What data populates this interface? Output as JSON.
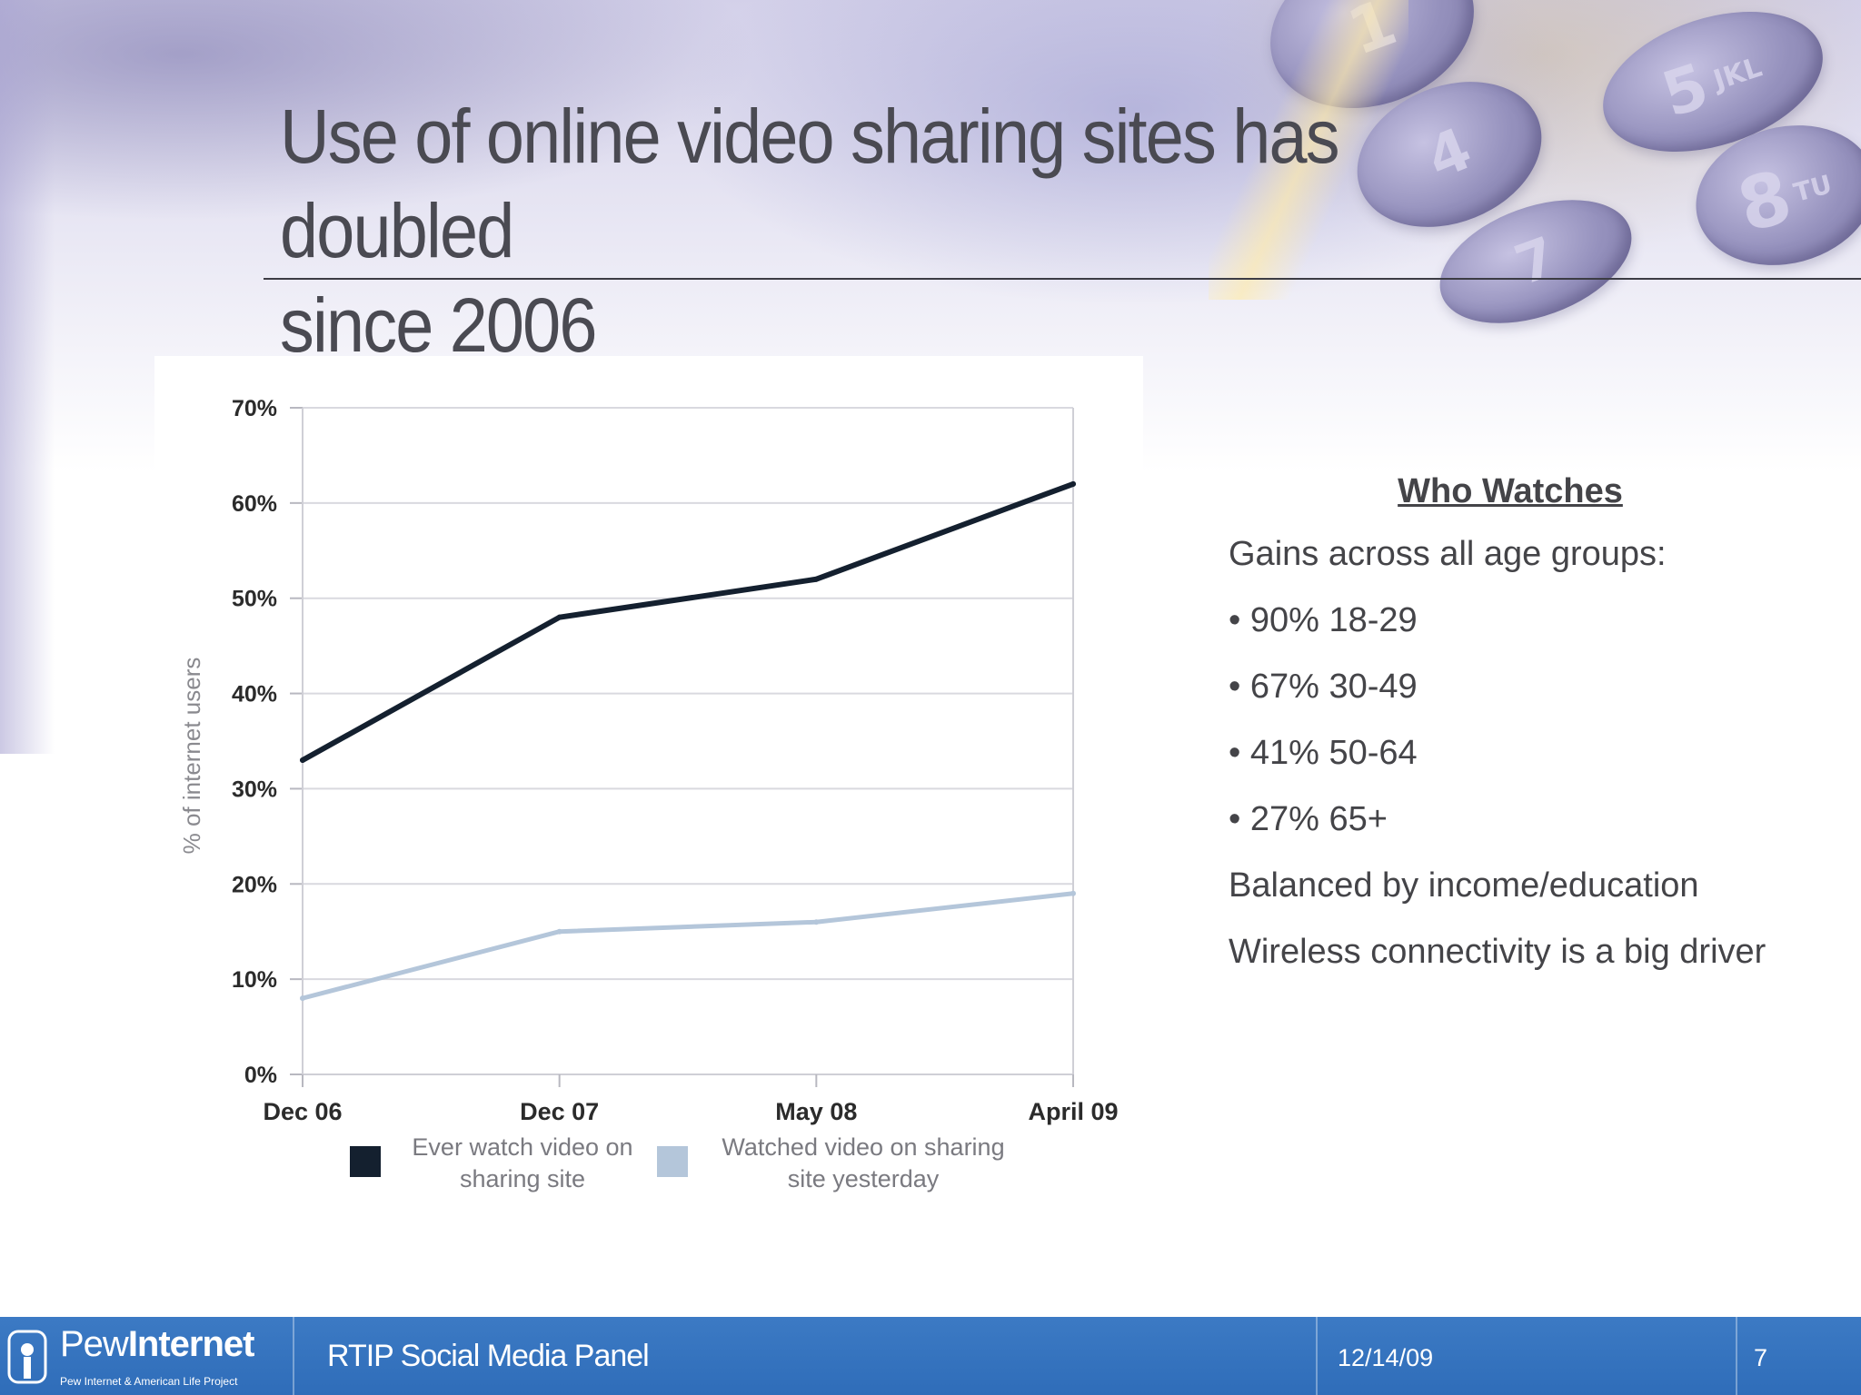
{
  "slide": {
    "title_line1": "Use of online video sharing sites has doubled",
    "title_line2": "since 2006"
  },
  "chart_data": {
    "type": "line",
    "categories": [
      "Dec 06",
      "Dec 07",
      "May 08",
      "April 09"
    ],
    "series": [
      {
        "name": "Ever watch video on sharing site",
        "values": [
          33,
          48,
          52,
          62
        ],
        "color": "#14202f"
      },
      {
        "name": "Watched video on sharing site yesterday",
        "values": [
          8,
          15,
          16,
          19
        ],
        "color": "#b4c6da"
      }
    ],
    "legend_lines": [
      [
        "Ever watch video on",
        "sharing site"
      ],
      [
        "Watched video on sharing",
        "site yesterday"
      ]
    ],
    "ylabel": "% of internet users",
    "ylim": [
      0,
      70
    ],
    "yticks": [
      0,
      10,
      20,
      30,
      40,
      50,
      60,
      70
    ],
    "ytick_labels": [
      "0%",
      "10%",
      "20%",
      "30%",
      "40%",
      "50%",
      "60%",
      "70%"
    ],
    "grid": true,
    "legend_position": "bottom"
  },
  "sidebar": {
    "heading": "Who Watches",
    "lines": [
      "Gains across all age groups:",
      "• 90% 18-29",
      "• 67% 30-49",
      "• 41% 50-64",
      "• 27% 65+",
      "Balanced by income/education",
      "Wireless connectivity is a big driver"
    ]
  },
  "footer": {
    "logo_light": "Pew",
    "logo_bold": "Internet",
    "logo_sub": "Pew Internet & American Life Project",
    "panel": "RTIP Social Media Panel",
    "date": "12/14/09",
    "page": "7"
  },
  "decor": {
    "keypad_digits": [
      "1",
      "5",
      "4",
      "8",
      "7"
    ],
    "keypad_letters": [
      "JKL",
      "TU"
    ]
  }
}
